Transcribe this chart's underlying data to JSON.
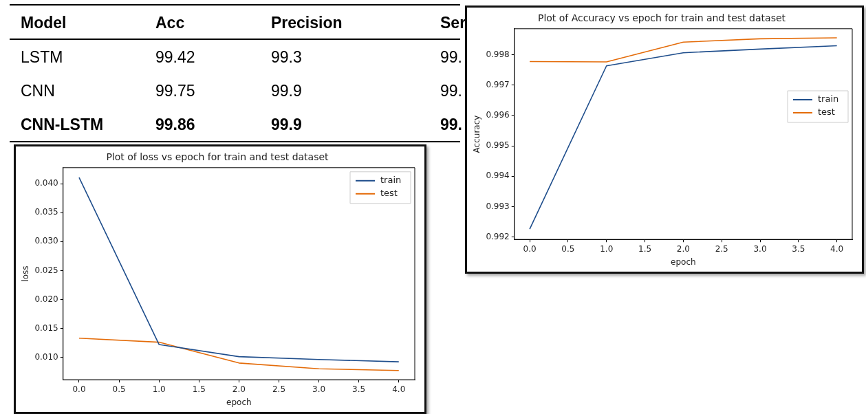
{
  "chart_data": [
    {
      "type": "other",
      "categories": [
        "Model",
        "Acc",
        "Precision",
        "Ser"
      ],
      "annotations": [
        "LSTM",
        "99.42",
        "99.3",
        "99.",
        "CNN",
        "99.75",
        "99.9",
        "99.",
        "CNN-LSTM",
        "99.86",
        "99.9",
        "99."
      ]
    },
    {
      "type": "line",
      "title": "Plot of Accuracy vs epoch for train and test dataset",
      "xlabel": "epoch",
      "ylabel": "Accuracy",
      "x": [
        0,
        1,
        2,
        3,
        4
      ],
      "series": [
        {
          "name": "train",
          "color": "#1f4e8c",
          "values": [
            0.99226,
            0.99763,
            0.99806,
            0.99818,
            0.99829
          ]
        },
        {
          "name": "test",
          "color": "#e46c0a",
          "values": [
            0.99777,
            0.99776,
            0.99841,
            0.99852,
            0.99855
          ]
        }
      ],
      "xlim": [
        -0.2,
        4.2
      ],
      "xticks": [
        {
          "value": 0,
          "label": "0.0"
        },
        0.5,
        {
          "value": 1,
          "label": "1.0"
        },
        1.5,
        {
          "value": 2,
          "label": "2.0"
        },
        2.5,
        {
          "value": 3,
          "label": "3.0"
        },
        3.5,
        {
          "value": 4,
          "label": "4.0"
        }
      ],
      "ylim": [
        0.99192,
        0.99885
      ],
      "yticks": [
        0.992,
        0.993,
        0.994,
        0.995,
        0.996,
        0.997,
        0.998
      ],
      "legend": "right",
      "grid": false
    },
    {
      "type": "line",
      "title": "Plot of loss vs epoch for train and test dataset",
      "xlabel": "epoch",
      "ylabel": "loss",
      "x": [
        0,
        1,
        2,
        3,
        4
      ],
      "series": [
        {
          "name": "train",
          "color": "#1f4e8c",
          "values": [
            0.0411,
            0.0122,
            0.0101,
            0.0096,
            0.0092
          ]
        },
        {
          "name": "test",
          "color": "#e46c0a",
          "values": [
            0.0133,
            0.0126,
            0.009,
            0.008,
            0.0077
          ]
        }
      ],
      "xlim": [
        -0.2,
        4.2
      ],
      "xticks": [
        {
          "value": 0,
          "label": "0.0"
        },
        0.5,
        {
          "value": 1,
          "label": "1.0"
        },
        1.5,
        {
          "value": 2,
          "label": "2.0"
        },
        2.5,
        {
          "value": 3,
          "label": "3.0"
        },
        3.5,
        {
          "value": 4,
          "label": "4.0"
        }
      ],
      "ylim": [
        0.0061,
        0.0428
      ],
      "yticks": [
        {
          "value": 0.01,
          "label": "0.010"
        },
        0.015,
        {
          "value": 0.02,
          "label": "0.020"
        },
        0.025,
        {
          "value": 0.03,
          "label": "0.030"
        },
        0.035,
        {
          "value": 0.04,
          "label": "0.040"
        }
      ],
      "legend": "top right",
      "grid": false
    }
  ]
}
